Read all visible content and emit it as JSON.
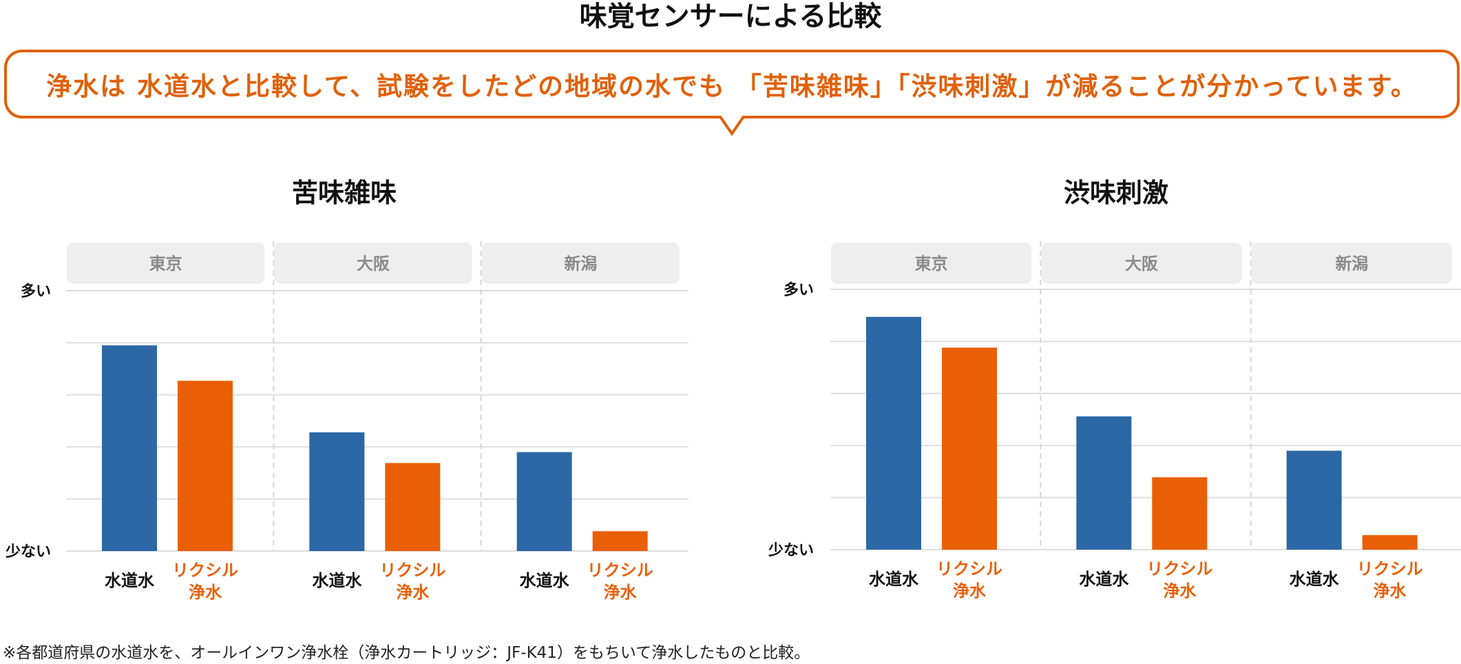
{
  "header": {
    "title": "味覚センサーによる比較"
  },
  "callout": {
    "text": "浄水は 水道水と比較して、試験をしたどの地域の水でも 「苦味雑味」「渋味刺激」が減ることが分かっています。"
  },
  "colors": {
    "accent": "#e0610a",
    "tap_water": "#2c67a6",
    "lixil": "#e95f05",
    "region_bg": "#eeeeee",
    "region_text": "#8a8a8a",
    "grid": "#dddddd"
  },
  "chart_data": [
    {
      "type": "bar",
      "title": "苦味雑味",
      "y_top_label": "多い",
      "y_bottom_label": "少ない",
      "ylim": [
        0,
        5
      ],
      "grid": true,
      "groups": [
        "東京",
        "大阪",
        "新潟"
      ],
      "series": [
        {
          "name": "水道水",
          "label_lines": [
            "水道水"
          ],
          "values": [
            3.95,
            2.28,
            1.9
          ]
        },
        {
          "name": "リクシル浄水",
          "label_lines": [
            "リクシル",
            "浄水"
          ],
          "values": [
            3.27,
            1.69,
            0.38
          ]
        }
      ]
    },
    {
      "type": "bar",
      "title": "渋味刺激",
      "y_top_label": "多い",
      "y_bottom_label": "少ない",
      "ylim": [
        0,
        5
      ],
      "grid": true,
      "groups": [
        "東京",
        "大阪",
        "新潟"
      ],
      "series": [
        {
          "name": "水道水",
          "label_lines": [
            "水道水"
          ],
          "values": [
            4.47,
            2.56,
            1.9
          ]
        },
        {
          "name": "リクシル浄水",
          "label_lines": [
            "リクシル",
            "浄水"
          ],
          "values": [
            3.88,
            1.39,
            0.28
          ]
        }
      ]
    }
  ],
  "footnote": "※各都道府県の水道水を、オールインワン浄水栓（浄水カートリッジ：JF-K41）をもちいて浄水したものと比較。"
}
